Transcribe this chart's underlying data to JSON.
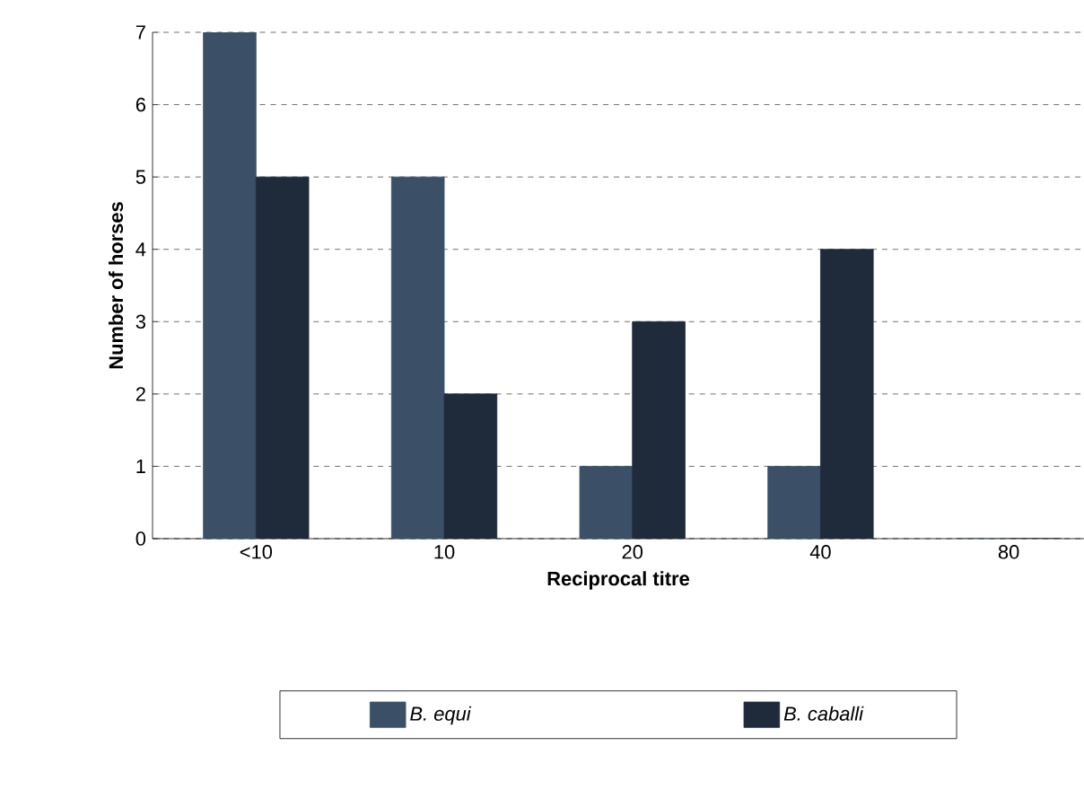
{
  "chart_data": {
    "type": "bar",
    "xlabel": "Reciprocal titre",
    "ylabel": "Number of horses",
    "categories": [
      "<10",
      "10",
      "20",
      "40",
      "80"
    ],
    "series": [
      {
        "name": "B. equi",
        "color": "#3b5066",
        "values": [
          7,
          5,
          1,
          1,
          0
        ]
      },
      {
        "name": "B. caballi",
        "color": "#1f2a3b",
        "values": [
          5,
          2,
          3,
          4,
          0
        ]
      }
    ],
    "ylim": [
      0,
      7
    ],
    "yticks": [
      0,
      1,
      2,
      3,
      4,
      5,
      6,
      7
    ],
    "grid": "y",
    "legend": "bottom"
  }
}
